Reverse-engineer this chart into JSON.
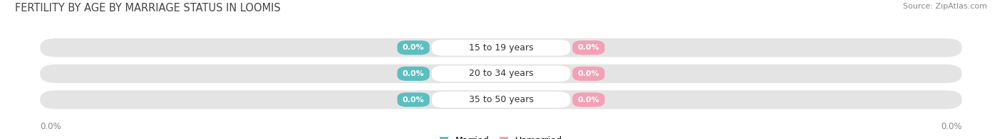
{
  "title": "FERTILITY BY AGE BY MARRIAGE STATUS IN LOOMIS",
  "source": "Source: ZipAtlas.com",
  "categories": [
    "15 to 19 years",
    "20 to 34 years",
    "35 to 50 years"
  ],
  "married_values": [
    0.0,
    0.0,
    0.0
  ],
  "unmarried_values": [
    0.0,
    0.0,
    0.0
  ],
  "married_color": "#5BBFBF",
  "unmarried_color": "#F4A0B5",
  "bar_track_color": "#E4E4E4",
  "center_pill_color": "#FFFFFF",
  "title_fontsize": 10.5,
  "label_fontsize": 9,
  "value_fontsize": 8,
  "tick_fontsize": 8.5,
  "source_fontsize": 8,
  "bg_color": "#FFFFFF",
  "axis_label_color": "#888888"
}
